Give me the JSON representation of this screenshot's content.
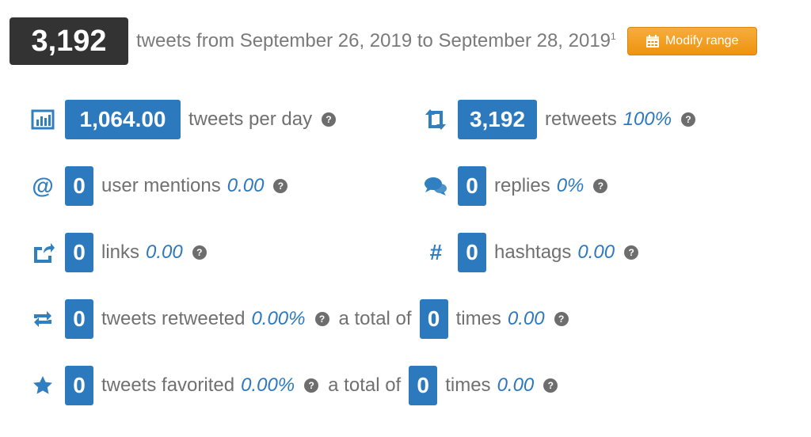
{
  "header": {
    "total": "3,192",
    "range_text": "tweets from September 26, 2019 to September 28, 2019",
    "footnote": "1",
    "modify_label": "Modify range"
  },
  "help_glyph": "?",
  "colors": {
    "accent": "#2d79bd",
    "button": "#f0a030",
    "dark": "#333333"
  },
  "stats": {
    "per_day": {
      "icon": "bar-chart-icon",
      "value": "1,064.00",
      "label": "tweets per day"
    },
    "retweets": {
      "icon": "retweet-icon",
      "value": "3,192",
      "label": "retweets",
      "pct": "100%"
    },
    "mentions": {
      "icon": "at-icon",
      "value": "0",
      "label": "user mentions",
      "pct": "0.00"
    },
    "replies": {
      "icon": "speech-bubbles-icon",
      "value": "0",
      "label": "replies",
      "pct": "0%"
    },
    "links": {
      "icon": "share-link-icon",
      "value": "0",
      "label": "links",
      "pct": "0.00"
    },
    "hashtags": {
      "icon": "hashtag-icon",
      "value": "0",
      "label": "hashtags",
      "pct": "0.00"
    },
    "retweeted": {
      "icon": "retweet-arrows-icon",
      "value": "0",
      "label": "tweets retweeted",
      "pct": "0.00%",
      "total_label": "a total of",
      "total_value": "0",
      "times_label": "times",
      "times_value": "0.00"
    },
    "favorited": {
      "icon": "star-icon",
      "value": "0",
      "label": "tweets favorited",
      "pct": "0.00%",
      "total_label": "a total of",
      "total_value": "0",
      "times_label": "times",
      "times_value": "0.00"
    }
  }
}
